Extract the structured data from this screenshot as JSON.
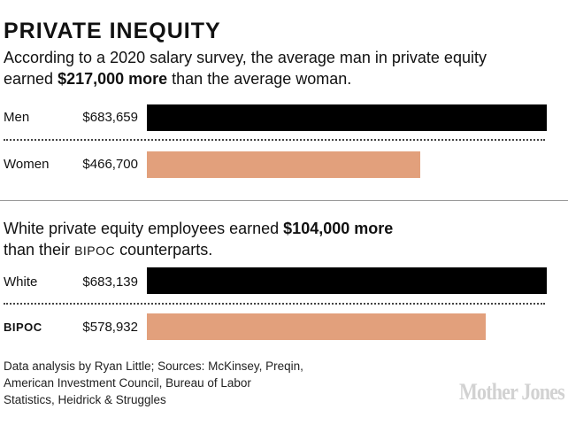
{
  "title": "PRIVATE INEQUITY",
  "panel1": {
    "subtitle_before": "According to a 2020 salary survey, the average man in private equity earned ",
    "subtitle_bold": "$217,000 more",
    "subtitle_after": " than the average woman."
  },
  "panel2": {
    "subtitle_before": "White private equity employees earned ",
    "subtitle_bold": "$104,000 more",
    "subtitle_line2_before": "than their ",
    "subtitle_smallcaps": "BIPOC",
    "subtitle_after": " counterparts."
  },
  "chart_data": [
    {
      "type": "bar",
      "orientation": "horizontal",
      "categories": [
        "Men",
        "Women"
      ],
      "values": [
        683659,
        466700
      ],
      "value_labels": [
        "$683,659",
        "$466,700"
      ],
      "colors": [
        "#000000",
        "#e2a07c"
      ],
      "xlim": [
        0,
        690000
      ]
    },
    {
      "type": "bar",
      "orientation": "horizontal",
      "categories": [
        "White",
        "BIPOC"
      ],
      "values": [
        683139,
        578932
      ],
      "value_labels": [
        "$683,139",
        "$578,932"
      ],
      "colors": [
        "#000000",
        "#e2a07c"
      ],
      "xlim": [
        0,
        690000
      ]
    }
  ],
  "source": "Data analysis by Ryan Little; Sources: McKinsey, Preqin, American Investment Council, Bureau of Labor Statistics, Heidrick & Struggles",
  "logo": "Mother Jones"
}
